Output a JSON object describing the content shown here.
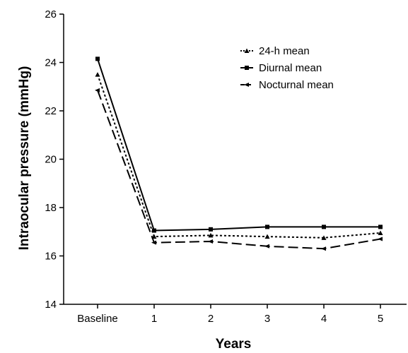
{
  "chart_data": {
    "type": "line",
    "title": "",
    "xlabel": "Years",
    "ylabel": "Intraocular pressure (mmHg)",
    "categories": [
      "Baseline",
      "1",
      "2",
      "3",
      "4",
      "5"
    ],
    "ylim": [
      14,
      26
    ],
    "yticks": [
      14,
      16,
      18,
      20,
      22,
      24,
      26
    ],
    "grid": false,
    "legend_position": "top-right",
    "series": [
      {
        "name": "24-h mean",
        "values": [
          23.5,
          16.8,
          16.85,
          16.8,
          16.75,
          16.95
        ],
        "line_style": "dotted",
        "marker": "triangle",
        "color": "#000000"
      },
      {
        "name": "Diurnal mean",
        "values": [
          24.15,
          17.05,
          17.1,
          17.2,
          17.2,
          17.2
        ],
        "line_style": "solid",
        "marker": "square",
        "color": "#000000"
      },
      {
        "name": "Nocturnal mean",
        "values": [
          22.85,
          16.55,
          16.6,
          16.4,
          16.3,
          16.7
        ],
        "line_style": "dashed",
        "marker": "arrow",
        "color": "#000000"
      }
    ]
  }
}
